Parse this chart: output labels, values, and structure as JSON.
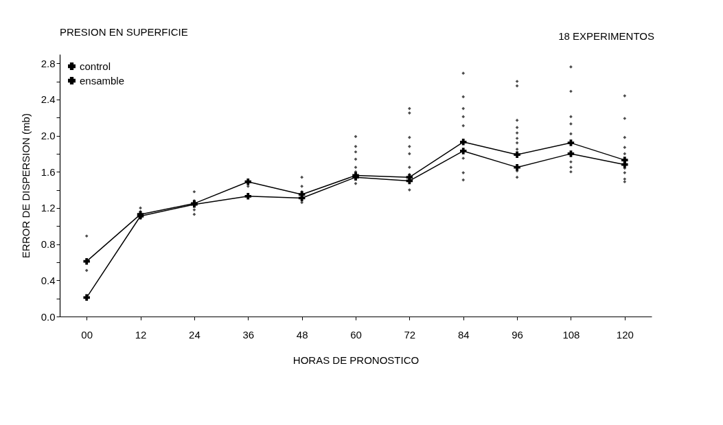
{
  "chart_data": {
    "type": "line",
    "title": "PRESION EN SUPERFICIE",
    "annotations": [
      "18 EXPERIMENTOS"
    ],
    "xlabel": "HORAS DE PRONOSTICO",
    "ylabel": "ERROR DE DISPERSION (mb)",
    "categories": [
      "00",
      "12",
      "24",
      "36",
      "48",
      "60",
      "72",
      "84",
      "96",
      "108",
      "120"
    ],
    "series": [
      {
        "name": "control",
        "color": "#000000",
        "marker": "cross",
        "values": [
          0.61,
          1.13,
          1.25,
          1.49,
          1.35,
          1.56,
          1.54,
          1.93,
          1.79,
          1.92,
          1.73
        ]
      },
      {
        "name": "ensamble",
        "color": "#000000",
        "marker": "cross",
        "values": [
          0.21,
          1.11,
          1.24,
          1.33,
          1.31,
          1.54,
          1.5,
          1.83,
          1.65,
          1.8,
          1.68
        ]
      },
      {
        "type": "scatter",
        "color": "#000000",
        "marker": "diamond",
        "x": [
          "00",
          "00",
          "12",
          "12",
          "12",
          "24",
          "24",
          "24",
          "24",
          "36",
          "48",
          "48",
          "48",
          "48",
          "60",
          "60",
          "60",
          "60",
          "60",
          "60",
          "60",
          "72",
          "72",
          "72",
          "72",
          "72",
          "72",
          "72",
          "72",
          "72",
          "84",
          "84",
          "84",
          "84",
          "84",
          "84",
          "84",
          "84",
          "96",
          "96",
          "96",
          "96",
          "96",
          "96",
          "96",
          "96",
          "96",
          "96",
          "108",
          "108",
          "108",
          "108",
          "108",
          "108",
          "108",
          "108",
          "120",
          "120",
          "120",
          "120",
          "120",
          "120",
          "120",
          "120",
          "120"
        ],
        "values": [
          0.89,
          0.51,
          1.2,
          1.16,
          1.09,
          1.38,
          1.28,
          1.18,
          1.13,
          1.44,
          1.54,
          1.44,
          1.38,
          1.26,
          1.99,
          1.88,
          1.82,
          1.74,
          1.65,
          1.6,
          1.47,
          2.3,
          2.25,
          1.98,
          1.88,
          1.8,
          1.65,
          1.57,
          1.49,
          1.4,
          2.69,
          2.43,
          2.3,
          2.21,
          2.11,
          1.75,
          1.59,
          1.51,
          2.6,
          2.55,
          2.17,
          2.09,
          2.03,
          1.97,
          1.92,
          1.85,
          1.61,
          1.54,
          2.76,
          2.49,
          2.21,
          2.13,
          2.02,
          1.71,
          1.65,
          1.6,
          2.44,
          2.19,
          1.98,
          1.87,
          1.8,
          1.64,
          1.59,
          1.52,
          1.49
        ]
      }
    ],
    "ylim": [
      0,
      2.9
    ],
    "yticks": [
      {
        "value": 0,
        "label": "0.0"
      },
      {
        "value": 0.2,
        "label": null
      },
      {
        "value": 0.4,
        "label": "0.4"
      },
      {
        "value": 0.6,
        "label": null
      },
      {
        "value": 0.8,
        "label": "0.8"
      },
      {
        "value": 1.0,
        "label": null
      },
      {
        "value": 1.2,
        "label": "1.2"
      },
      {
        "value": 1.4,
        "label": null
      },
      {
        "value": 1.6,
        "label": "1.6"
      },
      {
        "value": 1.8,
        "label": null
      },
      {
        "value": 2.0,
        "label": "2.0"
      },
      {
        "value": 2.2,
        "label": null
      },
      {
        "value": 2.4,
        "label": "2.4"
      },
      {
        "value": 2.6,
        "label": null
      },
      {
        "value": 2.8,
        "label": "2.8"
      }
    ],
    "grid": false,
    "legend": "top left",
    "line_style": "solid"
  }
}
